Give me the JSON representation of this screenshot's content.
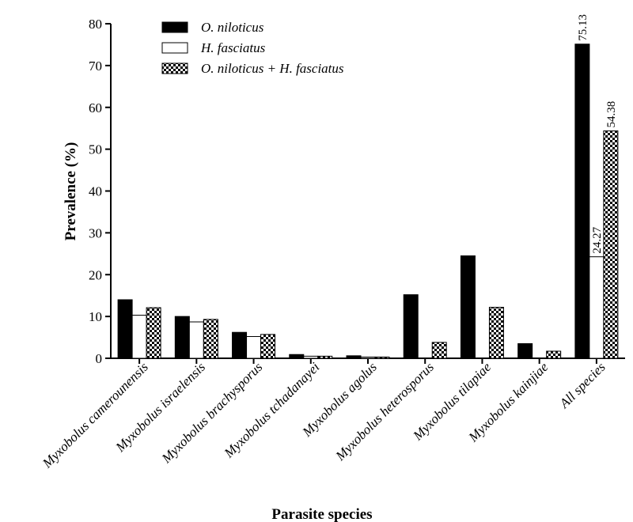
{
  "chart_data": {
    "type": "bar",
    "title": "",
    "xlabel": "Parasite species",
    "ylabel": "Prevalence (%)",
    "ylim": [
      0,
      80
    ],
    "yticks": [
      0,
      10,
      20,
      30,
      40,
      50,
      60,
      70,
      80
    ],
    "categories": [
      "Myxobolus camerounensis",
      "Myxobolus israelensis",
      "Myxobolus brachysporus",
      "Myxobolus tchadanayei",
      "Myxobolus agolus",
      "Myxobolus heterosporus",
      "Myxobolus tilapiae",
      "Myxobolus kainjiae",
      "All species"
    ],
    "series": [
      {
        "name": "O. niloticus",
        "fill": "solid",
        "color": "#000000",
        "values": [
          14.0,
          10.0,
          6.2,
          0.9,
          0.6,
          15.2,
          24.5,
          3.5,
          75.13
        ]
      },
      {
        "name": "H. fasciatus",
        "fill": "empty",
        "color": "#ffffff",
        "values": [
          10.3,
          8.7,
          5.2,
          0.5,
          0.3,
          0.0,
          0.0,
          0.0,
          24.27
        ]
      },
      {
        "name": "O. niloticus + H. fasciatus",
        "fill": "checkered",
        "color": "#000000",
        "values": [
          12.1,
          9.3,
          5.7,
          0.5,
          0.3,
          3.8,
          12.2,
          1.7,
          54.38
        ]
      }
    ],
    "data_labels": [
      {
        "category": "All species",
        "series": "O. niloticus",
        "text": "75.13"
      },
      {
        "category": "All species",
        "series": "H. fasciatus",
        "text": "24.27"
      },
      {
        "category": "All species",
        "series": "O. niloticus + H. fasciatus",
        "text": "54.38"
      }
    ],
    "grid": false,
    "legend_position": "top-left"
  }
}
